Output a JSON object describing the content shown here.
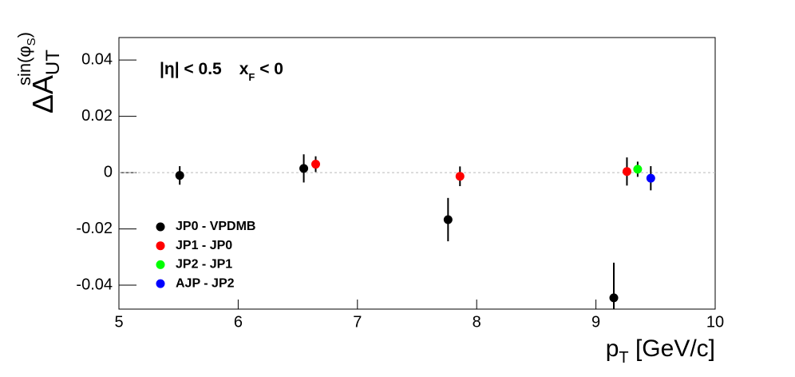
{
  "chart_data": {
    "type": "scatter",
    "ylabel": {
      "main": "ΔA",
      "sub": "UT",
      "sup": "sin(φ",
      "sup_sub": "S",
      "sup_end": ")"
    },
    "xlabel": {
      "main": "p",
      "sub": "T",
      "rest": " [GeV/c]"
    },
    "annotation": {
      "eta": "|η| < 0.5",
      "x": "x",
      "x_sub": "F",
      "x_rest": " < 0"
    },
    "xlim": [
      5,
      10
    ],
    "ylim": [
      -0.0485,
      0.048
    ],
    "xticks": [
      5,
      6,
      7,
      8,
      9,
      10
    ],
    "yticks": [
      -0.04,
      -0.02,
      0,
      0.02,
      0.04
    ],
    "hline": 0,
    "series": [
      {
        "name": "JP0 - VPDMB",
        "color": "#000000",
        "x": [
          5.51,
          6.55,
          7.76,
          9.15
        ],
        "values": [
          -0.001,
          0.0015,
          -0.0167,
          -0.0445
        ],
        "errors": [
          0.0033,
          0.005,
          0.0077,
          0.0125
        ]
      },
      {
        "name": "JP1 - JP0",
        "color": "#ff0000",
        "x": [
          6.65,
          7.86,
          9.26
        ],
        "values": [
          0.003,
          -0.0013,
          0.0004
        ],
        "errors": [
          0.0028,
          0.0035,
          0.005
        ]
      },
      {
        "name": "JP2 - JP1",
        "color": "#00ff00",
        "x": [
          9.35
        ],
        "values": [
          0.0012
        ],
        "errors": [
          0.0027
        ]
      },
      {
        "name": "AJP - JP2",
        "color": "#0000ff",
        "x": [
          9.46
        ],
        "values": [
          -0.002
        ],
        "errors": [
          0.0043
        ]
      }
    ]
  }
}
